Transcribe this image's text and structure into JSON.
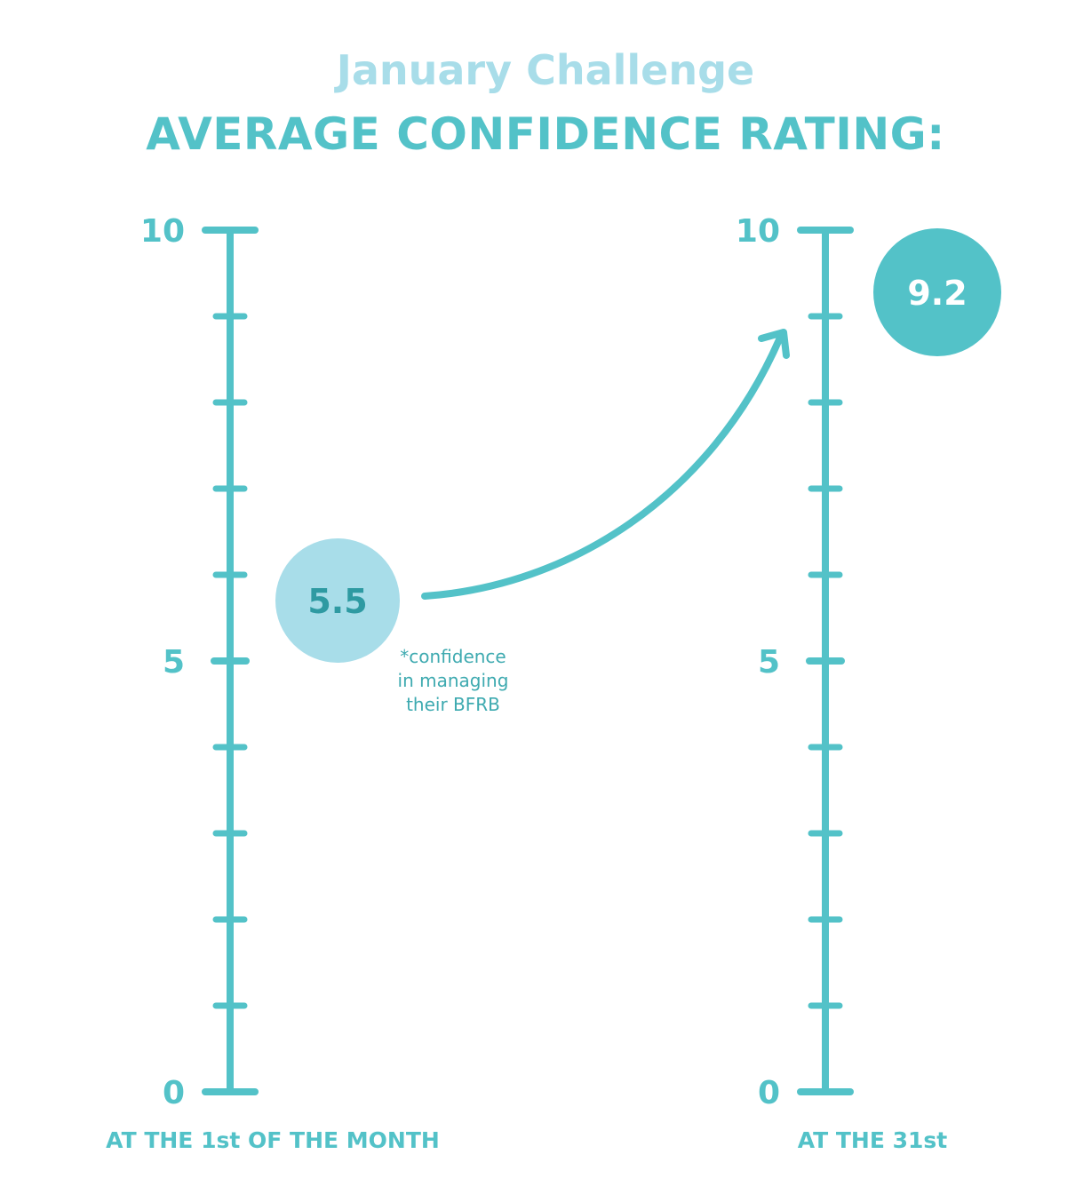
{
  "header": {
    "subtitle": "January Challenge",
    "title": "AVERAGE CONFIDENCE RATING:"
  },
  "chart_data": {
    "type": "scale-comparison",
    "title": "AVERAGE CONFIDENCE RATING:",
    "subtitle": "January Challenge",
    "ylim": [
      0,
      10
    ],
    "tick_labels": [
      "0",
      "5",
      "10"
    ],
    "minor_ticks": [
      1,
      2,
      3,
      4,
      6,
      7,
      8,
      9
    ],
    "points": [
      {
        "name": "AT THE 1st OF THE MONTH",
        "value": 5.5,
        "label": "5.5"
      },
      {
        "name": "AT THE 31st",
        "value": 9.2,
        "label": "9.2"
      }
    ],
    "annotation": [
      "*confidence",
      "in managing",
      "their BFRB"
    ],
    "colors": {
      "primary": "#53c2c8",
      "light": "#a8dde9",
      "dark_text": "#2e9aa2",
      "white": "#ffffff"
    }
  }
}
